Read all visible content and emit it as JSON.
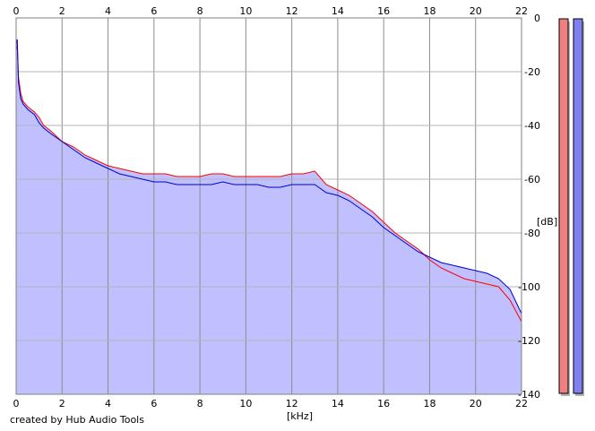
{
  "chart_data": {
    "type": "area",
    "xlabel": "[kHz]",
    "ylabel": "[dB]",
    "xlim": [
      0,
      22
    ],
    "ylim": [
      -140,
      0
    ],
    "x_ticks": [
      0,
      2,
      4,
      6,
      8,
      10,
      12,
      14,
      16,
      18,
      20,
      22
    ],
    "y_ticks": [
      0,
      -20,
      -40,
      -60,
      -80,
      -100,
      -120,
      -140
    ],
    "x_tick_labels": [
      "0",
      "2",
      "4",
      "6",
      "8",
      "10",
      "12",
      "14",
      "16",
      "18",
      "20",
      "22"
    ],
    "y_tick_labels": [
      "0",
      "-20",
      "-40",
      "-60",
      "-80",
      "-100",
      "-120",
      "-140"
    ],
    "grid": true,
    "series": [
      {
        "color": "#ff0000",
        "x": [
          0,
          0.05,
          0.1,
          0.2,
          0.3,
          0.5,
          0.8,
          1.0,
          1.2,
          1.5,
          2.0,
          2.5,
          3.0,
          3.5,
          4.0,
          4.5,
          5.0,
          5.5,
          6.0,
          6.5,
          7.0,
          7.5,
          8.0,
          8.5,
          9.0,
          9.5,
          10.0,
          10.5,
          11.0,
          11.5,
          12.0,
          12.5,
          13.0,
          13.5,
          14.0,
          14.5,
          15.0,
          15.5,
          16.0,
          16.5,
          17.0,
          17.5,
          18.0,
          18.5,
          19.0,
          19.5,
          20.0,
          20.5,
          21.0,
          21.5,
          22.0
        ],
        "values": [
          -12,
          -10,
          -22,
          -28,
          -31,
          -33,
          -35,
          -37,
          -40,
          -42,
          -46,
          -48,
          -51,
          -53,
          -55,
          -56,
          -57,
          -58,
          -58,
          -58,
          -59,
          -59,
          -59,
          -58,
          -58,
          -59,
          -59,
          -59,
          -59,
          -59,
          -58,
          -58,
          -57,
          -62,
          -64,
          -66,
          -69,
          -72,
          -76,
          -80,
          -83,
          -86,
          -90,
          -93,
          -95,
          -97,
          -98,
          -99,
          -100,
          -105,
          -113
        ]
      },
      {
        "color": "#0000cc",
        "x": [
          0,
          0.05,
          0.1,
          0.2,
          0.3,
          0.5,
          0.8,
          1.0,
          1.2,
          1.5,
          2.0,
          2.5,
          3.0,
          3.5,
          4.0,
          4.5,
          5.0,
          5.5,
          6.0,
          6.5,
          7.0,
          7.5,
          8.0,
          8.5,
          9.0,
          9.5,
          10.0,
          10.5,
          11.0,
          11.5,
          12.0,
          12.5,
          13.0,
          13.5,
          14.0,
          14.5,
          15.0,
          15.5,
          16.0,
          16.5,
          17.0,
          17.5,
          18.0,
          18.5,
          19.0,
          19.5,
          20.0,
          20.5,
          21.0,
          21.5,
          22.0
        ],
        "values": [
          -10,
          -8,
          -24,
          -30,
          -32,
          -34,
          -36,
          -39,
          -41,
          -43,
          -46,
          -49,
          -52,
          -54,
          -56,
          -58,
          -59,
          -60,
          -61,
          -61,
          -62,
          -62,
          -62,
          -62,
          -61,
          -62,
          -62,
          -62,
          -63,
          -63,
          -62,
          -62,
          -62,
          -65,
          -66,
          -68,
          -71,
          -74,
          -78,
          -81,
          -84,
          -87,
          -89,
          -91,
          -92,
          -93,
          -94,
          -95,
          -97,
          -101,
          -110
        ]
      }
    ],
    "fill_color": "#c0c0ff",
    "level_meters": [
      {
        "color": "#f08080",
        "level": 1.0
      },
      {
        "color": "#8080f0",
        "level": 1.0
      }
    ]
  },
  "footer": {
    "credit": "created by Hub Audio Tools"
  }
}
